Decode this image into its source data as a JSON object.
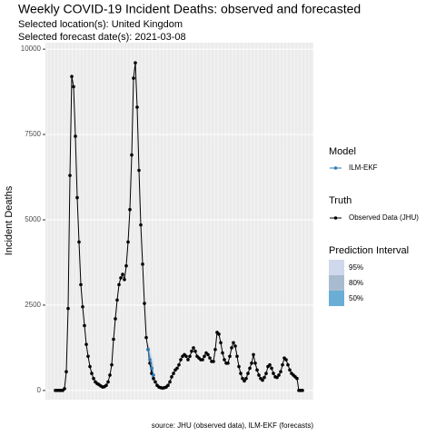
{
  "chart_data": {
    "type": "line",
    "title": "Weekly COVID-19 Incident Deaths: observed and forecasted",
    "subtitle": [
      "Selected location(s): United Kingdom",
      "Selected forecast date(s): 2021-03-08"
    ],
    "y_label": "Incident Deaths",
    "caption": "source: JHU (observed data), ILM-EKF (forecasts)",
    "ylim": [
      -270,
      10190
    ],
    "yticks": [
      0,
      2500,
      5000,
      7500,
      10000
    ],
    "grid": true,
    "truth": {
      "legend_title": "Truth",
      "name": "Observed Data (JHU)",
      "color": "#000000",
      "values": [
        0,
        0,
        0,
        0,
        0,
        50,
        550,
        2400,
        6300,
        9200,
        8900,
        7450,
        5650,
        4350,
        3100,
        2450,
        1900,
        1350,
        1000,
        700,
        500,
        350,
        250,
        200,
        170,
        130,
        100,
        110,
        150,
        250,
        450,
        750,
        1500,
        2100,
        2650,
        3100,
        3300,
        3400,
        3250,
        3650,
        4350,
        5300,
        6900,
        9150,
        9600,
        8300,
        6450,
        4850,
        3700,
        2550,
        1550,
        1200,
        800,
        500,
        350,
        250,
        150,
        100,
        80,
        70,
        80,
        100,
        150,
        250,
        400,
        500,
        600,
        650,
        750,
        900,
        1000,
        1050,
        1000,
        900,
        1000,
        1150,
        1250,
        1150,
        1000,
        950,
        900,
        900,
        1000,
        1100,
        1050,
        950,
        850,
        850,
        1200,
        1700,
        1650,
        1400,
        1100,
        900,
        800,
        800,
        1000,
        1250,
        1400,
        1300,
        1000,
        700,
        500,
        350,
        280,
        350,
        500,
        650,
        800,
        1050,
        800,
        600,
        450,
        350,
        300,
        380,
        500,
        700,
        750,
        650,
        500,
        400,
        380,
        450,
        550,
        750,
        950,
        900,
        750,
        600,
        500,
        450,
        400,
        350,
        0,
        0,
        0
      ]
    },
    "model": {
      "legend_title": "Model",
      "name": "ILM-EKF",
      "color": "#2c7bb6",
      "values": [
        null,
        null,
        null,
        null,
        null,
        null,
        null,
        null,
        null,
        null,
        null,
        null,
        null,
        null,
        null,
        null,
        null,
        null,
        null,
        null,
        null,
        null,
        null,
        null,
        null,
        null,
        null,
        null,
        null,
        null,
        null,
        null,
        null,
        null,
        null,
        null,
        null,
        null,
        null,
        null,
        null,
        null,
        null,
        null,
        null,
        null,
        null,
        null,
        null,
        null,
        null,
        1200,
        900,
        650,
        450,
        null,
        null,
        null,
        null,
        null,
        null,
        null,
        null,
        null,
        null,
        null,
        null,
        null,
        null,
        null,
        null,
        null,
        null,
        null,
        null,
        null,
        null,
        null,
        null,
        null,
        null,
        null,
        null,
        null,
        null,
        null,
        null,
        null,
        null,
        null,
        null,
        null,
        null,
        null,
        null,
        null,
        null,
        null,
        null,
        null,
        null,
        null,
        null,
        null,
        null,
        null,
        null,
        null,
        null,
        null,
        null,
        null,
        null,
        null,
        null,
        null,
        null,
        null,
        null,
        null,
        null,
        null,
        null,
        null,
        null,
        null,
        null,
        null,
        null,
        null,
        null,
        null,
        null,
        null,
        null,
        null,
        null
      ]
    },
    "intervals": {
      "legend_title": "Prediction Interval",
      "levels": [
        {
          "name": "95%",
          "color": "#d0d8ec",
          "lower": [
            1000,
            600,
            350,
            150
          ],
          "upper": [
            1400,
            1200,
            1000,
            800
          ]
        },
        {
          "name": "80%",
          "color": "#a9bccf",
          "lower": [
            1050,
            700,
            450,
            250
          ],
          "upper": [
            1350,
            1100,
            850,
            650
          ]
        },
        {
          "name": "50%",
          "color": "#6aaed6",
          "lower": [
            1120,
            800,
            550,
            350
          ],
          "upper": [
            1280,
            1000,
            750,
            550
          ]
        }
      ]
    }
  }
}
